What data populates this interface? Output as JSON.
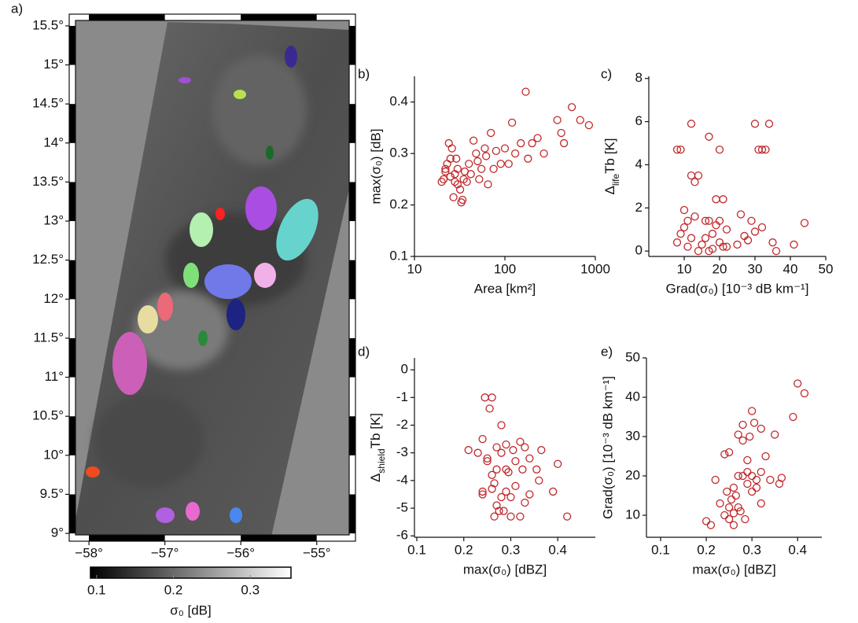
{
  "chart_data": [
    {
      "type": "map",
      "label": "a)",
      "xlim": [
        -58.26,
        -54.49
      ],
      "ylim": [
        8.9,
        15.65
      ],
      "xticks": [
        {
          "value": -58,
          "label": "−58°"
        },
        {
          "value": -57,
          "label": "−57°"
        },
        {
          "value": -56,
          "label": "−56°"
        },
        {
          "value": -55,
          "label": "−55°"
        }
      ],
      "yticks": [
        {
          "value": 9,
          "label": "9°"
        },
        {
          "value": 9.5,
          "label": "9.5°"
        },
        {
          "value": 10,
          "label": "10°"
        },
        {
          "value": 10.5,
          "label": "10.5°"
        },
        {
          "value": 11,
          "label": "11°"
        },
        {
          "value": 11.5,
          "label": "11.5°"
        },
        {
          "value": 12,
          "label": "12°"
        },
        {
          "value": 12.5,
          "label": "12.5°"
        },
        {
          "value": 13,
          "label": "13°"
        },
        {
          "value": 13.5,
          "label": "13.5°"
        },
        {
          "value": 14,
          "label": "14°"
        },
        {
          "value": 14.5,
          "label": "14.5°"
        },
        {
          "value": 15,
          "label": "15°"
        },
        {
          "value": 15.5,
          "label": "15.5°"
        }
      ],
      "colorbar": {
        "clim": [
          0.092,
          0.353
        ],
        "ticks": [
          0.1,
          0.2,
          0.3
        ],
        "cmap": [
          "#000000",
          "#ffffff"
        ],
        "label": "σ₀ [dB]"
      }
    },
    {
      "type": "scatter",
      "label": "b)",
      "xscale": "log",
      "xlabel": "Area [km²]",
      "ylabel": "max(σ₀) [dB]",
      "xlim": [
        10,
        1000
      ],
      "ylim": [
        0.1,
        0.45
      ],
      "xticks": [
        10,
        100,
        1000
      ],
      "yticks": [
        0.1,
        0.2,
        0.3,
        0.4
      ],
      "x": [
        20,
        21,
        22,
        22,
        23,
        24,
        25,
        25,
        26,
        27,
        28,
        28,
        29,
        30,
        30,
        32,
        33,
        34,
        35,
        36,
        38,
        40,
        42,
        45,
        48,
        50,
        52,
        55,
        60,
        62,
        65,
        70,
        75,
        80,
        90,
        100,
        110,
        120,
        130,
        150,
        170,
        180,
        200,
        230,
        270,
        380,
        420,
        450,
        550,
        680,
        850
      ],
      "series": [
        {
          "color": "#c0282c",
          "values": [
            0.245,
            0.25,
            0.27,
            0.265,
            0.28,
            0.32,
            0.29,
            0.255,
            0.31,
            0.215,
            0.26,
            0.245,
            0.29,
            0.27,
            0.24,
            0.23,
            0.205,
            0.21,
            0.25,
            0.265,
            0.245,
            0.28,
            0.26,
            0.325,
            0.3,
            0.285,
            0.25,
            0.27,
            0.31,
            0.295,
            0.24,
            0.34,
            0.27,
            0.305,
            0.28,
            0.31,
            0.28,
            0.36,
            0.3,
            0.32,
            0.42,
            0.29,
            0.32,
            0.33,
            0.3,
            0.365,
            0.34,
            0.32,
            0.39,
            0.365,
            0.355
          ]
        }
      ]
    },
    {
      "type": "scatter",
      "label": "c)",
      "xlabel": "Grad(σ₀) [10⁻³ dB km⁻¹]",
      "ylabel": [
        {
          "text": "Δ"
        },
        {
          "text": "life",
          "sub": true
        },
        {
          "text": "Tb [K]"
        }
      ],
      "xlim": [
        0,
        50
      ],
      "ylim": [
        -0.25,
        8.1
      ],
      "xticks": [
        10,
        20,
        30,
        40,
        50
      ],
      "yticks": [
        0,
        2,
        4,
        6,
        8
      ],
      "x": [
        8,
        8,
        9,
        9,
        10,
        10,
        11,
        11,
        12,
        12,
        12,
        13,
        13,
        14,
        14,
        15,
        16,
        16,
        17,
        17,
        17,
        18,
        18,
        19,
        19,
        20,
        20,
        20,
        21,
        21,
        22,
        22,
        25,
        26,
        27,
        28,
        29,
        30,
        30,
        31,
        32,
        32,
        33,
        34,
        35,
        36,
        41,
        44
      ],
      "series": [
        {
          "color": "#c0282c",
          "values": [
            0.4,
            4.7,
            4.7,
            0.8,
            1.1,
            1.9,
            1.4,
            0.2,
            5.9,
            3.5,
            0.6,
            1.6,
            3.2,
            3.5,
            0,
            0.3,
            1.4,
            0.6,
            5.3,
            1.4,
            0,
            0.8,
            0.1,
            1.2,
            2.4,
            4.7,
            1.4,
            0.4,
            2.4,
            0.2,
            1,
            0.2,
            0.3,
            1.7,
            0.7,
            0.5,
            1.4,
            5.9,
            0.9,
            4.7,
            4.7,
            1.1,
            4.7,
            5.9,
            0.4,
            0,
            0.3,
            1.3
          ]
        }
      ]
    },
    {
      "type": "scatter",
      "label": "d)",
      "xlabel": "max(σ₀) [dBZ]",
      "ylabel": [
        {
          "text": "Δ"
        },
        {
          "text": "shield",
          "sub": true
        },
        {
          "text": "Tb [K]"
        }
      ],
      "xlim": [
        0.095,
        0.48
      ],
      "ylim": [
        -6.05,
        0.43
      ],
      "xticks": [
        0.1,
        0.2,
        0.3,
        0.4
      ],
      "yticks": [
        -6,
        -5,
        -4,
        -3,
        -2,
        -1,
        0
      ],
      "x": [
        0.21,
        0.23,
        0.24,
        0.24,
        0.245,
        0.25,
        0.25,
        0.255,
        0.26,
        0.26,
        0.265,
        0.265,
        0.27,
        0.27,
        0.27,
        0.275,
        0.28,
        0.28,
        0.28,
        0.285,
        0.29,
        0.29,
        0.29,
        0.295,
        0.3,
        0.3,
        0.305,
        0.31,
        0.31,
        0.32,
        0.32,
        0.325,
        0.33,
        0.33,
        0.34,
        0.34,
        0.355,
        0.36,
        0.365,
        0.39,
        0.4,
        0.42,
        0.26,
        0.24
      ],
      "series": [
        {
          "color": "#c0282c",
          "values": [
            -2.9,
            -3,
            -2.5,
            -4.4,
            -1,
            -3.2,
            -3.3,
            -1.4,
            -1,
            -3.8,
            -4.1,
            -5.3,
            -3.6,
            -4.9,
            -2.8,
            -5.1,
            -3,
            -2,
            -4.6,
            -5.1,
            -3.6,
            -4.4,
            -2.7,
            -3.7,
            -4.6,
            -5.3,
            -2.9,
            -3.3,
            -4.2,
            -2.6,
            -5.3,
            -3.6,
            -4.8,
            -2.8,
            -3.2,
            -4.5,
            -3.6,
            -4,
            -2.9,
            -4.4,
            -3.4,
            -5.3,
            -4.3,
            -4.5
          ]
        }
      ]
    },
    {
      "type": "scatter",
      "label": "e)",
      "xlabel": "max(σ₀) [dBZ]",
      "ylabel": "Grad(σ₀) [10⁻³ dB km⁻¹]",
      "xlim": [
        0.069,
        0.453
      ],
      "ylim": [
        4.4,
        50
      ],
      "xticks": [
        0.1,
        0.2,
        0.3,
        0.4
      ],
      "yticks": [
        10,
        20,
        30,
        40,
        50
      ],
      "x": [
        0.2,
        0.21,
        0.22,
        0.23,
        0.24,
        0.24,
        0.245,
        0.25,
        0.25,
        0.255,
        0.26,
        0.26,
        0.265,
        0.27,
        0.27,
        0.27,
        0.275,
        0.28,
        0.28,
        0.28,
        0.285,
        0.29,
        0.29,
        0.29,
        0.295,
        0.3,
        0.3,
        0.3,
        0.305,
        0.31,
        0.31,
        0.32,
        0.32,
        0.32,
        0.33,
        0.34,
        0.35,
        0.36,
        0.365,
        0.39,
        0.4,
        0.415,
        0.25,
        0.26
      ],
      "series": [
        {
          "color": "#c0282c",
          "values": [
            8.5,
            7.5,
            19,
            13,
            25.5,
            10,
            16,
            12,
            9,
            14,
            17,
            10.5,
            15,
            12,
            20,
            30.5,
            11,
            20,
            29,
            33,
            9,
            18,
            24,
            21,
            30,
            20,
            16,
            36.5,
            33.5,
            19,
            17,
            21,
            13,
            32,
            25,
            19,
            30.5,
            18,
            19.5,
            35,
            43.5,
            41,
            26,
            7.5
          ]
        }
      ]
    }
  ]
}
